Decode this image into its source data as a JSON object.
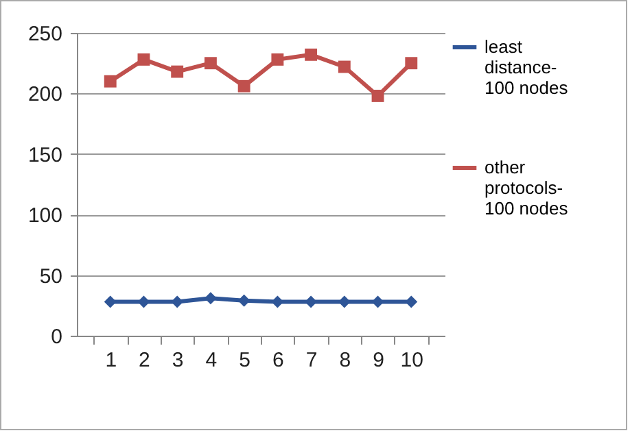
{
  "chart_data": {
    "type": "line",
    "categories": [
      "1",
      "2",
      "3",
      "4",
      "5",
      "6",
      "7",
      "8",
      "9",
      "10"
    ],
    "series": [
      {
        "name": "least distance-100 nodes",
        "color": "#2e5597",
        "marker": "diamond",
        "values": [
          28,
          28,
          28,
          31,
          29,
          28,
          28,
          28,
          28,
          28
        ]
      },
      {
        "name": "other protocols-100 nodes",
        "color": "#c0504d",
        "marker": "square",
        "values": [
          210,
          228,
          218,
          225,
          206,
          228,
          232,
          222,
          198,
          225
        ]
      }
    ],
    "ylim": [
      0,
      250
    ],
    "yticks": [
      0,
      50,
      100,
      150,
      200,
      250
    ],
    "grid": "y",
    "legend": "right"
  }
}
